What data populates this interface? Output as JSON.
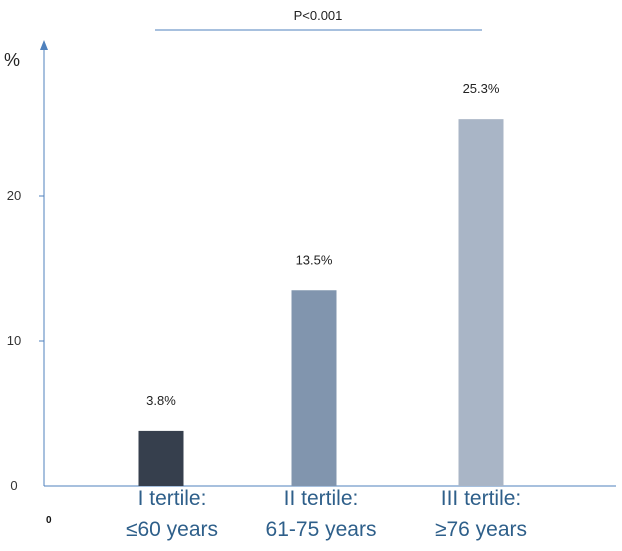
{
  "chart_data": {
    "type": "bar",
    "categories": [
      {
        "line1": "I tertile:",
        "line2": "≤60 years"
      },
      {
        "line1": "II tertile:",
        "line2": "61-75 years"
      },
      {
        "line1": "III tertile:",
        "line2": "≥76 years"
      }
    ],
    "values": [
      3.8,
      13.5,
      25.3
    ],
    "value_labels": [
      "3.8%",
      "13.5%",
      "25.3%"
    ],
    "bar_colors": [
      "#363f4d",
      "#8195ae",
      "#a9b5c6"
    ],
    "ylabel": "%",
    "ylim": [
      0,
      30
    ],
    "yticks": [
      0,
      10,
      20
    ],
    "annotation": "P<0.001",
    "x_corner_label": "0",
    "axis_color": "#4f81bd",
    "category_label_color": "#2e5f8a",
    "grid": false,
    "legend": "none"
  }
}
